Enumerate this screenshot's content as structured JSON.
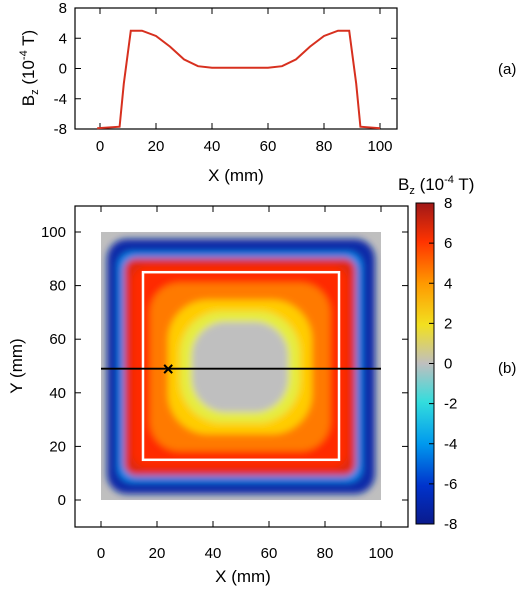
{
  "chart_data": [
    {
      "panel": "(a)",
      "type": "line",
      "xlabel": "X (mm)",
      "ylabel_main": "B",
      "ylabel_sub": "z",
      "ylabel_unit_pre": " (10",
      "ylabel_exp": "-4",
      "ylabel_unit_post": " T)",
      "xlim": [
        -10,
        105
      ],
      "ylim": [
        -8,
        8
      ],
      "xticks": [
        0,
        20,
        40,
        60,
        80,
        100
      ],
      "yticks": [
        -8,
        -4,
        0,
        4,
        8
      ],
      "line_color": "#d7301f",
      "series": [
        {
          "x": [
            -1,
            7,
            8.5,
            11,
            15,
            20,
            25,
            30,
            35,
            40,
            50,
            60,
            65,
            70,
            75,
            80,
            85,
            89,
            91.5,
            93,
            100
          ],
          "y": [
            -7.9,
            -7.7,
            -2.0,
            5.0,
            5.0,
            4.3,
            2.9,
            1.2,
            0.3,
            0.1,
            0.1,
            0.1,
            0.3,
            1.2,
            2.9,
            4.3,
            5.0,
            5.0,
            -2.0,
            -7.7,
            -7.9
          ]
        }
      ]
    },
    {
      "panel": "(b)",
      "type": "heatmap",
      "xlabel": "X (mm)",
      "ylabel": "Y (mm)",
      "xlim": [
        -10,
        110
      ],
      "ylim": [
        -10,
        110
      ],
      "xticks": [
        0,
        20,
        40,
        60,
        80,
        100
      ],
      "yticks": [
        0,
        20,
        40,
        60,
        80,
        100
      ],
      "colorbar": {
        "title_main": "B",
        "title_sub": "z",
        "title_unit_pre": " (10",
        "title_exp": "-4",
        "title_unit_post": " T)",
        "range": [
          -8,
          8
        ],
        "ticks": [
          -8,
          -6,
          -4,
          -2,
          0,
          2,
          4,
          6,
          8
        ]
      },
      "field": {
        "x_range": [
          0,
          100
        ],
        "y_range": [
          0,
          100
        ],
        "inner_value": 0,
        "inner_half_width": 27,
        "edge_value": 7.5,
        "edge_half_width": 39,
        "outer_value": -7.5
      },
      "white_rectangle": {
        "x": [
          15,
          85
        ],
        "y": [
          15,
          85
        ]
      },
      "cut_line_y": 49,
      "cross_marker": {
        "x": 24,
        "y": 49,
        "symbol": "×"
      }
    }
  ],
  "panel_labels": {
    "a": "(a)",
    "b": "(b)"
  }
}
